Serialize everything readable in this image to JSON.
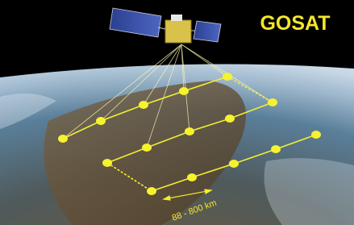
{
  "title": "GOSAT",
  "scale_label": "88 - 800 km"
}
